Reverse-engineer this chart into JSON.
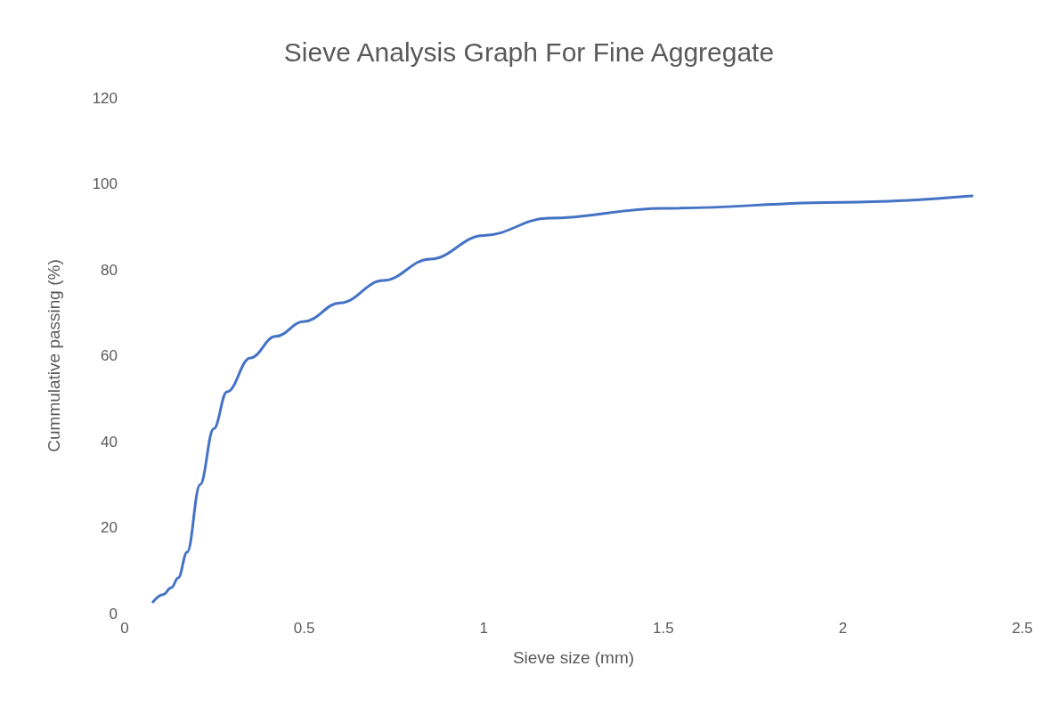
{
  "chart_data": {
    "type": "line",
    "title": "Sieve Analysis Graph For Fine Aggregate",
    "xlabel": "Sieve size (mm)",
    "ylabel": "Cummulative passing (%)",
    "x": [
      0.079,
      0.107,
      0.13,
      0.149,
      0.174,
      0.21,
      0.248,
      0.285,
      0.35,
      0.42,
      0.5,
      0.6,
      0.72,
      0.85,
      1.0,
      1.18,
      1.5,
      2.0,
      2.36
    ],
    "series": [
      {
        "color": "#4472c4",
        "values": [
          2.7,
          4.4,
          6,
          8.3,
          14.3,
          30,
          43,
          51.6,
          59.5,
          64.5,
          68,
          72.3,
          77.5,
          82.5,
          88,
          92,
          94.3,
          95.7,
          97.2
        ]
      }
    ],
    "xlim": [
      0,
      2.5
    ],
    "xticks": [
      0,
      0.5,
      1,
      1.5,
      2,
      2.5
    ],
    "ylim": [
      0,
      120
    ],
    "yticks": [
      0,
      20,
      40,
      60,
      80,
      100,
      120
    ],
    "grid": false,
    "marker": "none",
    "line_style": "solid"
  }
}
